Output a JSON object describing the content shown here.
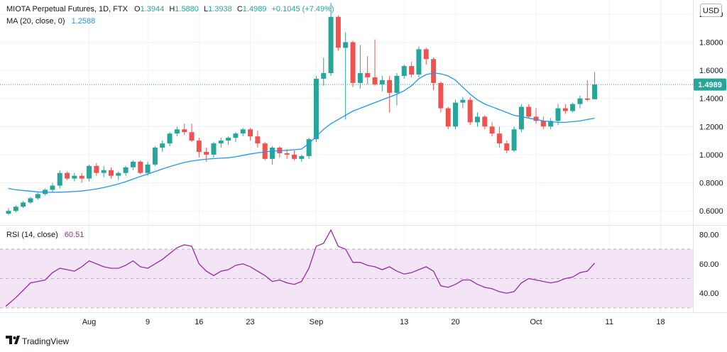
{
  "legend": {
    "symbol": "MIOTA Perpetual Futures, 1D, FTX",
    "o_label": "O",
    "o_value": "1.3944",
    "h_label": "H",
    "h_value": "1.5880",
    "l_label": "L",
    "l_value": "1.3938",
    "c_label": "C",
    "c_value": "1.4989",
    "change": "+0.1045 (+7.49%)",
    "ma_label": "MA (20, close, 0)",
    "ma_value": "1.2588"
  },
  "rsi_legend": {
    "label": "RSI (14, close)",
    "value": "60.51"
  },
  "currency_badge": "USD",
  "price_badge": "1.4989",
  "brand": "TradingView",
  "colors": {
    "up": "#26a69a",
    "down": "#ef5350",
    "ma": "#2196f3",
    "rsi": "#9c27b0",
    "rsi_band": "#f3e5f5",
    "grid": "#f0f3fa",
    "text": "#131722"
  },
  "chart_data": [
    {
      "type": "candlestick",
      "title": "MIOTA Perpetual Futures, 1D, FTX",
      "y_ticks": [
        "2.0000",
        "1.8000",
        "1.6000",
        "1.4000",
        "1.2000",
        "1.0000",
        "0.8000",
        "0.6000"
      ],
      "ylim": [
        0.5,
        2.1
      ],
      "x_ticks": [
        {
          "label": "Aug",
          "index": 11
        },
        {
          "label": "9",
          "index": 19
        },
        {
          "label": "16",
          "index": 26
        },
        {
          "label": "23",
          "index": 33
        },
        {
          "label": "Sep",
          "index": 42
        },
        {
          "label": "13",
          "index": 54
        },
        {
          "label": "20",
          "index": 61
        },
        {
          "label": "Oct",
          "index": 72
        },
        {
          "label": "11",
          "index": 82
        },
        {
          "label": "18",
          "index": 89
        }
      ],
      "candles": [
        [
          0.58,
          0.62,
          0.57,
          0.6
        ],
        [
          0.6,
          0.64,
          0.59,
          0.63
        ],
        [
          0.63,
          0.67,
          0.62,
          0.66
        ],
        [
          0.66,
          0.7,
          0.65,
          0.69
        ],
        [
          0.69,
          0.73,
          0.68,
          0.72
        ],
        [
          0.72,
          0.76,
          0.71,
          0.75
        ],
        [
          0.75,
          0.8,
          0.73,
          0.78
        ],
        [
          0.78,
          0.89,
          0.76,
          0.87
        ],
        [
          0.87,
          0.88,
          0.82,
          0.83
        ],
        [
          0.83,
          0.87,
          0.81,
          0.85
        ],
        [
          0.85,
          0.87,
          0.8,
          0.83
        ],
        [
          0.83,
          0.93,
          0.81,
          0.92
        ],
        [
          0.92,
          0.94,
          0.85,
          0.87
        ],
        [
          0.87,
          0.92,
          0.84,
          0.89
        ],
        [
          0.89,
          0.91,
          0.83,
          0.85
        ],
        [
          0.85,
          0.88,
          0.82,
          0.87
        ],
        [
          0.87,
          0.92,
          0.85,
          0.91
        ],
        [
          0.91,
          0.96,
          0.89,
          0.95
        ],
        [
          0.95,
          0.96,
          0.86,
          0.87
        ],
        [
          0.87,
          0.95,
          0.85,
          0.93
        ],
        [
          0.93,
          1.06,
          0.92,
          1.05
        ],
        [
          1.05,
          1.1,
          1.02,
          1.08
        ],
        [
          1.08,
          1.16,
          1.06,
          1.15
        ],
        [
          1.15,
          1.2,
          1.13,
          1.18
        ],
        [
          1.18,
          1.22,
          1.14,
          1.16
        ],
        [
          1.16,
          1.22,
          1.09,
          1.1
        ],
        [
          1.1,
          1.12,
          0.98,
          1.02
        ],
        [
          1.02,
          1.05,
          0.95,
          1.0
        ],
        [
          1.0,
          1.09,
          0.98,
          1.08
        ],
        [
          1.08,
          1.12,
          1.05,
          1.1
        ],
        [
          1.1,
          1.13,
          1.07,
          1.12
        ],
        [
          1.12,
          1.16,
          1.09,
          1.15
        ],
        [
          1.15,
          1.19,
          1.13,
          1.18
        ],
        [
          1.18,
          1.19,
          1.1,
          1.13
        ],
        [
          1.13,
          1.17,
          1.05,
          1.08
        ],
        [
          1.08,
          1.09,
          0.96,
          0.97
        ],
        [
          0.97,
          1.06,
          0.93,
          1.05
        ],
        [
          1.05,
          1.06,
          0.98,
          1.01
        ],
        [
          1.01,
          1.04,
          0.97,
          1.0
        ],
        [
          1.0,
          1.03,
          0.96,
          0.97
        ],
        [
          0.97,
          1.0,
          0.95,
          0.99
        ],
        [
          0.99,
          1.12,
          0.97,
          1.11
        ],
        [
          1.11,
          1.56,
          1.09,
          1.54
        ],
        [
          1.54,
          1.69,
          1.49,
          1.58
        ],
        [
          1.58,
          2.08,
          1.56,
          1.98
        ],
        [
          1.98,
          1.99,
          1.74,
          1.76
        ],
        [
          1.76,
          1.87,
          1.25,
          1.8
        ],
        [
          1.8,
          1.81,
          1.48,
          1.51
        ],
        [
          1.51,
          1.78,
          1.47,
          1.58
        ],
        [
          1.58,
          1.7,
          1.5,
          1.55
        ],
        [
          1.55,
          1.82,
          1.49,
          1.5
        ],
        [
          1.5,
          1.56,
          1.45,
          1.53
        ],
        [
          1.53,
          1.56,
          1.3,
          1.44
        ],
        [
          1.44,
          1.58,
          1.35,
          1.56
        ],
        [
          1.56,
          1.64,
          1.54,
          1.63
        ],
        [
          1.63,
          1.66,
          1.55,
          1.57
        ],
        [
          1.57,
          1.77,
          1.55,
          1.75
        ],
        [
          1.75,
          1.76,
          1.64,
          1.68
        ],
        [
          1.68,
          1.69,
          1.46,
          1.51
        ],
        [
          1.51,
          1.52,
          1.3,
          1.33
        ],
        [
          1.33,
          1.34,
          1.18,
          1.2
        ],
        [
          1.2,
          1.39,
          1.18,
          1.37
        ],
        [
          1.37,
          1.41,
          1.33,
          1.39
        ],
        [
          1.39,
          1.41,
          1.21,
          1.23
        ],
        [
          1.23,
          1.3,
          1.2,
          1.27
        ],
        [
          1.27,
          1.28,
          1.18,
          1.2
        ],
        [
          1.2,
          1.23,
          1.13,
          1.15
        ],
        [
          1.15,
          1.2,
          1.05,
          1.08
        ],
        [
          1.08,
          1.1,
          1.01,
          1.03
        ],
        [
          1.03,
          1.2,
          1.02,
          1.18
        ],
        [
          1.18,
          1.36,
          1.16,
          1.34
        ],
        [
          1.34,
          1.36,
          1.26,
          1.27
        ],
        [
          1.27,
          1.33,
          1.22,
          1.24
        ],
        [
          1.24,
          1.27,
          1.18,
          1.2
        ],
        [
          1.2,
          1.26,
          1.18,
          1.24
        ],
        [
          1.24,
          1.36,
          1.21,
          1.33
        ],
        [
          1.33,
          1.36,
          1.29,
          1.31
        ],
        [
          1.31,
          1.37,
          1.3,
          1.36
        ],
        [
          1.36,
          1.42,
          1.33,
          1.4
        ],
        [
          1.4,
          1.53,
          1.38,
          1.39
        ],
        [
          1.3944,
          1.588,
          1.3938,
          1.4989
        ]
      ],
      "ma20": [
        0.76,
        0.75,
        0.745,
        0.74,
        0.735,
        0.733,
        0.732,
        0.733,
        0.735,
        0.738,
        0.742,
        0.748,
        0.756,
        0.766,
        0.778,
        0.792,
        0.808,
        0.826,
        0.845,
        0.862,
        0.88,
        0.898,
        0.915,
        0.93,
        0.945,
        0.955,
        0.962,
        0.968,
        0.972,
        0.975,
        0.978,
        0.985,
        0.995,
        1.005,
        1.013,
        1.02,
        1.025,
        1.028,
        1.031,
        1.035,
        1.04,
        1.08,
        1.13,
        1.18,
        1.22,
        1.25,
        1.28,
        1.31,
        1.33,
        1.35,
        1.37,
        1.39,
        1.41,
        1.43,
        1.455,
        1.49,
        1.54,
        1.57,
        1.58,
        1.575,
        1.56,
        1.53,
        1.48,
        1.43,
        1.39,
        1.36,
        1.34,
        1.32,
        1.3,
        1.28,
        1.27,
        1.26,
        1.25,
        1.24,
        1.235,
        1.23,
        1.23,
        1.235,
        1.24,
        1.25,
        1.2588
      ],
      "overlays": {
        "ma": {
          "name": "MA (20, close, 0)"
        }
      }
    },
    {
      "type": "line",
      "title": "RSI (14, close)",
      "y_ticks": [
        "80.00",
        "60.00",
        "40.00"
      ],
      "ylim": [
        27,
        86
      ],
      "bands": [
        30,
        50,
        70
      ],
      "values": [
        31,
        37,
        42,
        47,
        48,
        49,
        54,
        57,
        56,
        55,
        58,
        62,
        60,
        58,
        57,
        57,
        59,
        62,
        58,
        57,
        60,
        63,
        67,
        71,
        73,
        72,
        60,
        55,
        52,
        55,
        56,
        59,
        60,
        58,
        55,
        52,
        48,
        49,
        47,
        46,
        48,
        57,
        72,
        74,
        83,
        72,
        70,
        61,
        61,
        59,
        58,
        56,
        58,
        55,
        53,
        54,
        56,
        58,
        55,
        45,
        44,
        46,
        49,
        49,
        46,
        44,
        43,
        41,
        40,
        41,
        47,
        50,
        49,
        48,
        47,
        48,
        50,
        51,
        54,
        55,
        60.51
      ]
    }
  ]
}
